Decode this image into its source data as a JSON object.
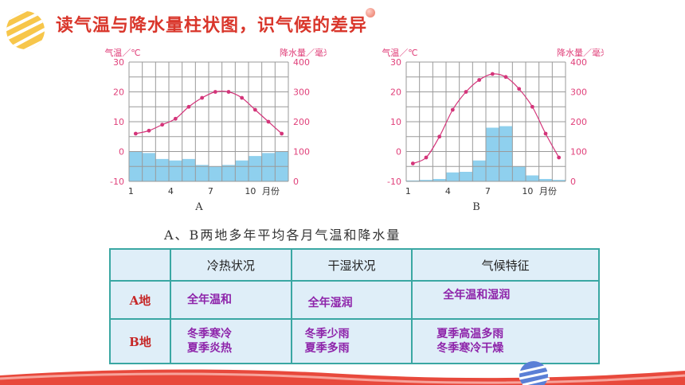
{
  "title": "读气温与降水量柱状图，识气候的差异",
  "caption": "A、B两地多年平均各月气温和降水量",
  "colors": {
    "title": "#d9362b",
    "grid": "#9a9a9a",
    "axis": "#e0407a",
    "temp_line": "#d4357a",
    "bar": "#8fd0ee",
    "table_border": "#3aa7a3",
    "table_bg": "#dfeef8",
    "row_label": "#c62828",
    "cell_text": "#8e24aa"
  },
  "chart_data": [
    {
      "type": "bar+line",
      "label": "A",
      "y_left_label": "气温／℃",
      "y_right_label": "降水量／毫米",
      "x_label": "月份",
      "x_ticks": [
        "1",
        "4",
        "7",
        "10"
      ],
      "x_tick_months": [
        1,
        4,
        7,
        10
      ],
      "left_ticks": [
        "30",
        "20",
        "10",
        "0",
        "-10"
      ],
      "right_ticks": [
        "400",
        "300",
        "200",
        "100",
        "0"
      ],
      "ylim_temp": [
        -10,
        30
      ],
      "ylim_precip": [
        0,
        400
      ],
      "months": [
        1,
        2,
        3,
        4,
        5,
        6,
        7,
        8,
        9,
        10,
        11,
        12
      ],
      "temperature": [
        6,
        7,
        9,
        11,
        15,
        18,
        20,
        20,
        18,
        14,
        10,
        6
      ],
      "precipitation": [
        100,
        95,
        75,
        70,
        75,
        55,
        50,
        55,
        70,
        85,
        95,
        100
      ]
    },
    {
      "type": "bar+line",
      "label": "B",
      "y_left_label": "气温／℃",
      "y_right_label": "降水量／毫米",
      "x_label": "月份",
      "x_ticks": [
        "1",
        "4",
        "7",
        "10"
      ],
      "x_tick_months": [
        1,
        4,
        7,
        10
      ],
      "left_ticks": [
        "30",
        "20",
        "10",
        "0",
        "-10"
      ],
      "right_ticks": [
        "400",
        "300",
        "200",
        "100",
        "0"
      ],
      "ylim_temp": [
        -10,
        30
      ],
      "ylim_precip": [
        0,
        400
      ],
      "months": [
        1,
        2,
        3,
        4,
        5,
        6,
        7,
        8,
        9,
        10,
        11,
        12
      ],
      "temperature": [
        -4,
        -2,
        5,
        14,
        20,
        24,
        26,
        25,
        21,
        15,
        6,
        -2
      ],
      "precipitation": [
        3,
        5,
        8,
        30,
        32,
        70,
        180,
        185,
        50,
        20,
        8,
        5
      ]
    }
  ],
  "table": {
    "headers": [
      "",
      "冷热状况",
      "干湿状况",
      "气候特征"
    ],
    "rows": [
      {
        "label": "A地",
        "cold_heat": [
          "全年温和"
        ],
        "dry_wet": [
          "全年湿润"
        ],
        "climate": [
          "全年温和湿润"
        ]
      },
      {
        "label": "B地",
        "cold_heat": [
          "冬季寒冷",
          "夏季炎热"
        ],
        "dry_wet": [
          "冬季少雨",
          "夏季多雨"
        ],
        "climate": [
          "夏季高温多雨",
          "冬季寒冷干燥"
        ]
      }
    ]
  }
}
